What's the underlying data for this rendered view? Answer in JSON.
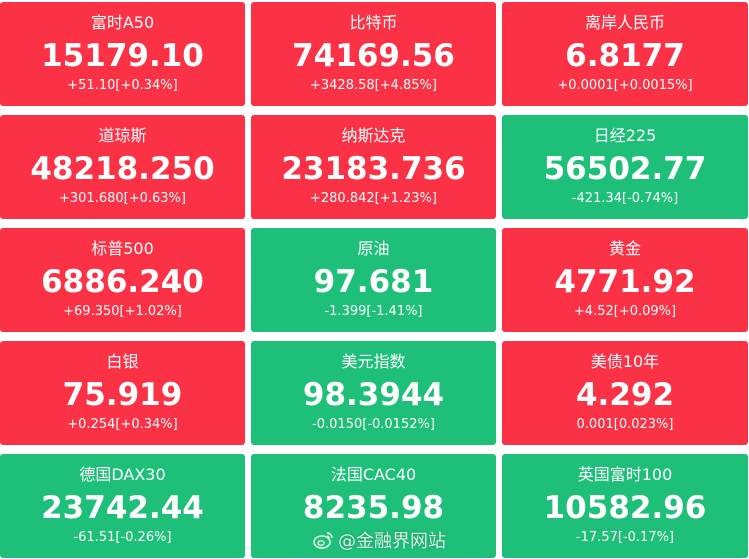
{
  "tiles": [
    {
      "name": "富时A50",
      "price": "15179.10",
      "change": "+51.10[+0.34%]",
      "trend": "up"
    },
    {
      "name": "比特币",
      "price": "74169.56",
      "change": "+3428.58[+4.85%]",
      "trend": "up"
    },
    {
      "name": "离岸人民币",
      "price": "6.8177",
      "change": "+0.0001[+0.0015%]",
      "trend": "up"
    },
    {
      "name": "道琼斯",
      "price": "48218.250",
      "change": "+301.680[+0.63%]",
      "trend": "up"
    },
    {
      "name": "纳斯达克",
      "price": "23183.736",
      "change": "+280.842[+1.23%]",
      "trend": "up"
    },
    {
      "name": "日经225",
      "price": "56502.77",
      "change": "-421.34[-0.74%]",
      "trend": "down"
    },
    {
      "name": "标普500",
      "price": "6886.240",
      "change": "+69.350[+1.02%]",
      "trend": "up"
    },
    {
      "name": "原油",
      "price": "97.681",
      "change": "-1.399[-1.41%]",
      "trend": "down"
    },
    {
      "name": "黄金",
      "price": "4771.92",
      "change": "+4.52[+0.09%]",
      "trend": "up"
    },
    {
      "name": "白银",
      "price": "75.919",
      "change": "+0.254[+0.34%]",
      "trend": "up"
    },
    {
      "name": "美元指数",
      "price": "98.3944",
      "change": "-0.0150[-0.0152%]",
      "trend": "down"
    },
    {
      "name": "美债10年",
      "price": "4.292",
      "change": "0.001[0.023%]",
      "trend": "up"
    },
    {
      "name": "德国DAX30",
      "price": "23742.44",
      "change": "-61.51[-0.26%]",
      "trend": "down"
    },
    {
      "name": "法国CAC40",
      "price": "8235.98",
      "change": "",
      "trend": "down"
    },
    {
      "name": "英国富时100",
      "price": "10582.96",
      "change": "-17.57[-0.17%]",
      "trend": "down"
    }
  ],
  "watermark": {
    "text": "@金融界网站",
    "icon": "weibo-icon"
  },
  "colors": {
    "up": "#fb3145",
    "down": "#1dbf79",
    "text": "#ffffff"
  }
}
